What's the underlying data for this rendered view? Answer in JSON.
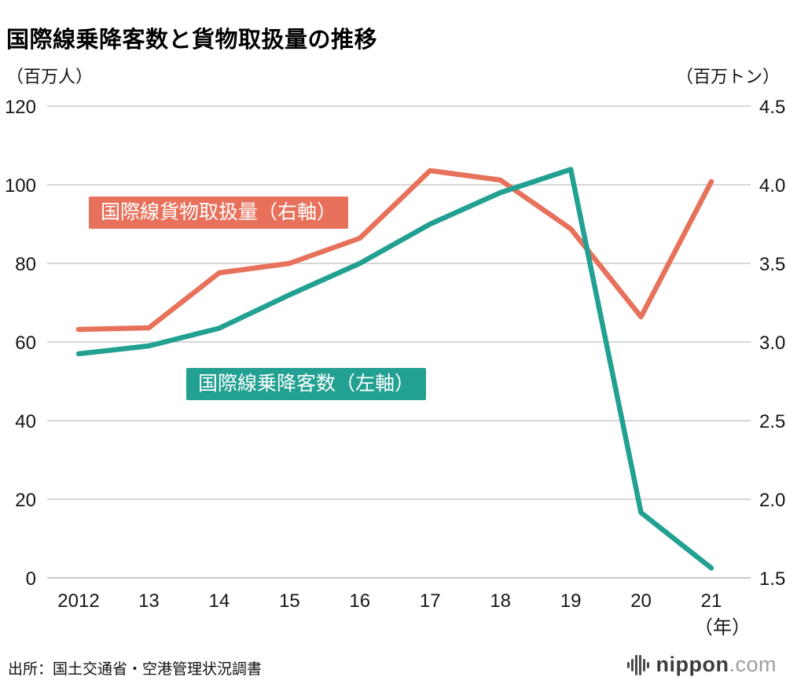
{
  "title": "国際線乗降客数と貨物取扱量の推移",
  "source": "出所：国土交通省・空港管理状況調書",
  "logo": {
    "brand": "nippon",
    "tld": ".com",
    "icon": "soundwave-bars-icon"
  },
  "chart_data": {
    "type": "line",
    "title": "国際線乗降客数と貨物取扱量の推移",
    "categories": [
      "2012",
      "13",
      "14",
      "15",
      "16",
      "17",
      "18",
      "19",
      "20",
      "21"
    ],
    "series": [
      {
        "name": "国際線貨物取扱量（右軸）",
        "axis": "right",
        "color": "#e7715a",
        "values": [
          3.08,
          3.09,
          3.44,
          3.5,
          3.66,
          4.09,
          4.03,
          3.72,
          3.16,
          4.02
        ]
      },
      {
        "name": "国際線乗降客数（左軸）",
        "axis": "left",
        "color": "#22a091",
        "values": [
          57,
          59,
          63.5,
          72,
          80,
          90,
          98,
          103.9,
          16.6,
          2.5
        ]
      }
    ],
    "left_axis": {
      "label": "（百万人）",
      "min": 0,
      "max": 120,
      "step": 20
    },
    "right_axis": {
      "label": "（百万トン）",
      "min": 1.5,
      "max": 4.5,
      "step": 0.5
    },
    "x_axis_suffix": "（年）",
    "grid": true,
    "legend_position": "inline-labels"
  }
}
